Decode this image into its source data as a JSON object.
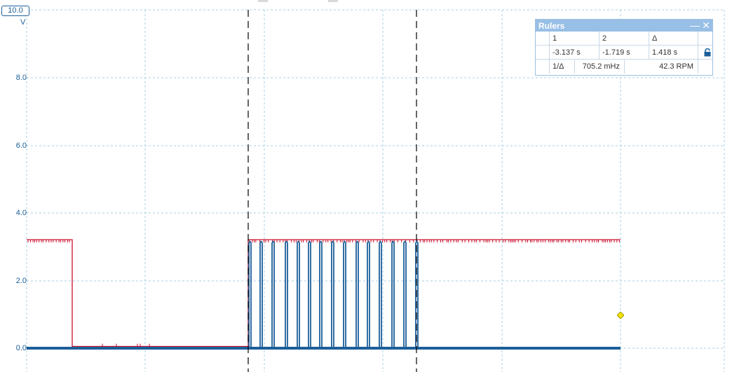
{
  "axis": {
    "top_value": "10.0",
    "unit": "V",
    "y_labels": [
      "8.0",
      "6.0",
      "4.0",
      "2.0",
      "0.0"
    ]
  },
  "rulers": {
    "title": "Rulers",
    "minimize_glyph": "—",
    "close_glyph": "✕",
    "headers": {
      "col1": "1",
      "col2": "2",
      "delta": "Δ"
    },
    "ruler1_value": "-3.137 s",
    "ruler2_value": "-1.719 s",
    "delta_value": "1.418 s",
    "inverse_label": "1/Δ",
    "frequency": "705.2 mHz",
    "rpm": "42.3 RPM"
  },
  "chart_data": {
    "type": "line",
    "ylim": [
      0,
      10
    ],
    "ylabel": "V",
    "grid": true,
    "series": [
      {
        "color": "#c8102e",
        "high": 3.2,
        "low": 0.05
      },
      {
        "color": "#1c5f99",
        "high": 3.2,
        "low": 0.0,
        "pulses": 15
      }
    ],
    "colors": {
      "grid": "#a9cfe3",
      "cursor": "#000000",
      "blue": "#1c5f99",
      "red": "#c8102e"
    }
  }
}
